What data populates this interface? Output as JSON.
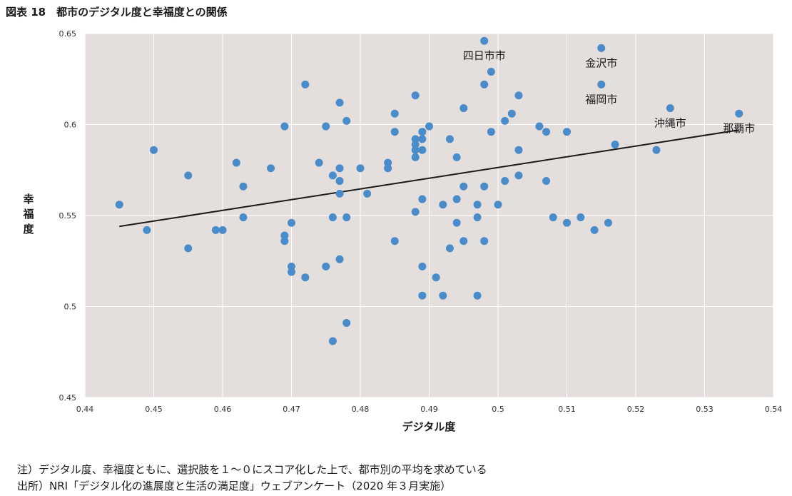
{
  "figure": {
    "title": "図表 18　都市のデジタル度と幸福度との関係",
    "note": "注）デジタル度、幸福度ともに、選択肢を１～０にスコア化した上で、都市別の平均を求めている",
    "source": "出所）NRI「デジタル化の進展度と生活の満足度」ウェブアンケート（2020 年３月実施）"
  },
  "colors": {
    "plot_background": "#e4dfdd",
    "gridline": "#ffffff",
    "point": "#4a8cc9",
    "trendline": "#1a1a1a"
  },
  "chart_data": {
    "type": "scatter",
    "title": "",
    "xlabel": "デジタル度",
    "ylabel": "幸福度",
    "xlim": [
      0.44,
      0.54
    ],
    "ylim": [
      0.45,
      0.65
    ],
    "xticks": [
      0.44,
      0.45,
      0.46,
      0.47,
      0.48,
      0.49,
      0.5,
      0.51,
      0.52,
      0.53,
      0.54
    ],
    "xtick_labels": [
      "0.44",
      "0.45",
      "0.46",
      "0.47",
      "0.48",
      "0.49",
      "0.5",
      "0.51",
      "0.52",
      "0.53",
      "0.54"
    ],
    "yticks": [
      0.45,
      0.5,
      0.55,
      0.6,
      0.65
    ],
    "ytick_labels": [
      "0.45",
      "0.5",
      "0.55",
      "0.6",
      "0.65"
    ],
    "grid": true,
    "legend": "none",
    "trendline": {
      "x": [
        0.445,
        0.535
      ],
      "y": [
        0.544,
        0.597
      ]
    },
    "points": [
      [
        0.445,
        0.556
      ],
      [
        0.449,
        0.542
      ],
      [
        0.45,
        0.586
      ],
      [
        0.455,
        0.572
      ],
      [
        0.455,
        0.532
      ],
      [
        0.459,
        0.542
      ],
      [
        0.46,
        0.542
      ],
      [
        0.462,
        0.579
      ],
      [
        0.463,
        0.566
      ],
      [
        0.463,
        0.549
      ],
      [
        0.467,
        0.576
      ],
      [
        0.469,
        0.599
      ],
      [
        0.469,
        0.539
      ],
      [
        0.469,
        0.536
      ],
      [
        0.47,
        0.546
      ],
      [
        0.47,
        0.522
      ],
      [
        0.47,
        0.519
      ],
      [
        0.472,
        0.622
      ],
      [
        0.472,
        0.516
      ],
      [
        0.474,
        0.579
      ],
      [
        0.475,
        0.599
      ],
      [
        0.475,
        0.522
      ],
      [
        0.476,
        0.572
      ],
      [
        0.476,
        0.549
      ],
      [
        0.476,
        0.481
      ],
      [
        0.477,
        0.612
      ],
      [
        0.477,
        0.576
      ],
      [
        0.477,
        0.569
      ],
      [
        0.477,
        0.562
      ],
      [
        0.477,
        0.526
      ],
      [
        0.478,
        0.602
      ],
      [
        0.478,
        0.549
      ],
      [
        0.478,
        0.491
      ],
      [
        0.48,
        0.576
      ],
      [
        0.481,
        0.562
      ],
      [
        0.484,
        0.579
      ],
      [
        0.484,
        0.576
      ],
      [
        0.485,
        0.606
      ],
      [
        0.485,
        0.596
      ],
      [
        0.485,
        0.536
      ],
      [
        0.488,
        0.616
      ],
      [
        0.488,
        0.592
      ],
      [
        0.488,
        0.589
      ],
      [
        0.488,
        0.586
      ],
      [
        0.488,
        0.582
      ],
      [
        0.488,
        0.552
      ],
      [
        0.489,
        0.596
      ],
      [
        0.489,
        0.592
      ],
      [
        0.489,
        0.586
      ],
      [
        0.489,
        0.559
      ],
      [
        0.489,
        0.522
      ],
      [
        0.489,
        0.506
      ],
      [
        0.49,
        0.599
      ],
      [
        0.491,
        0.516
      ],
      [
        0.492,
        0.556
      ],
      [
        0.492,
        0.506
      ],
      [
        0.493,
        0.592
      ],
      [
        0.493,
        0.532
      ],
      [
        0.494,
        0.582
      ],
      [
        0.494,
        0.559
      ],
      [
        0.494,
        0.546
      ],
      [
        0.495,
        0.609
      ],
      [
        0.495,
        0.566
      ],
      [
        0.495,
        0.536
      ],
      [
        0.497,
        0.556
      ],
      [
        0.497,
        0.549
      ],
      [
        0.497,
        0.506
      ],
      [
        0.498,
        0.646
      ],
      [
        0.498,
        0.622
      ],
      [
        0.498,
        0.566
      ],
      [
        0.498,
        0.536
      ],
      [
        0.499,
        0.629
      ],
      [
        0.499,
        0.596
      ],
      [
        0.5,
        0.556
      ],
      [
        0.501,
        0.602
      ],
      [
        0.501,
        0.569
      ],
      [
        0.502,
        0.606
      ],
      [
        0.503,
        0.616
      ],
      [
        0.503,
        0.586
      ],
      [
        0.503,
        0.572
      ],
      [
        0.506,
        0.599
      ],
      [
        0.507,
        0.596
      ],
      [
        0.507,
        0.569
      ],
      [
        0.508,
        0.549
      ],
      [
        0.51,
        0.596
      ],
      [
        0.51,
        0.546
      ],
      [
        0.512,
        0.549
      ],
      [
        0.514,
        0.542
      ],
      [
        0.515,
        0.642
      ],
      [
        0.515,
        0.622
      ],
      [
        0.516,
        0.546
      ],
      [
        0.517,
        0.589
      ],
      [
        0.523,
        0.586
      ],
      [
        0.525,
        0.609
      ],
      [
        0.535,
        0.606
      ]
    ],
    "annotations": [
      {
        "text": "四日市市",
        "x": 0.498,
        "y": 0.646
      },
      {
        "text": "金沢市",
        "x": 0.515,
        "y": 0.642
      },
      {
        "text": "福岡市",
        "x": 0.515,
        "y": 0.622
      },
      {
        "text": "沖縄市",
        "x": 0.525,
        "y": 0.609
      },
      {
        "text": "那覇市",
        "x": 0.535,
        "y": 0.606
      }
    ]
  }
}
